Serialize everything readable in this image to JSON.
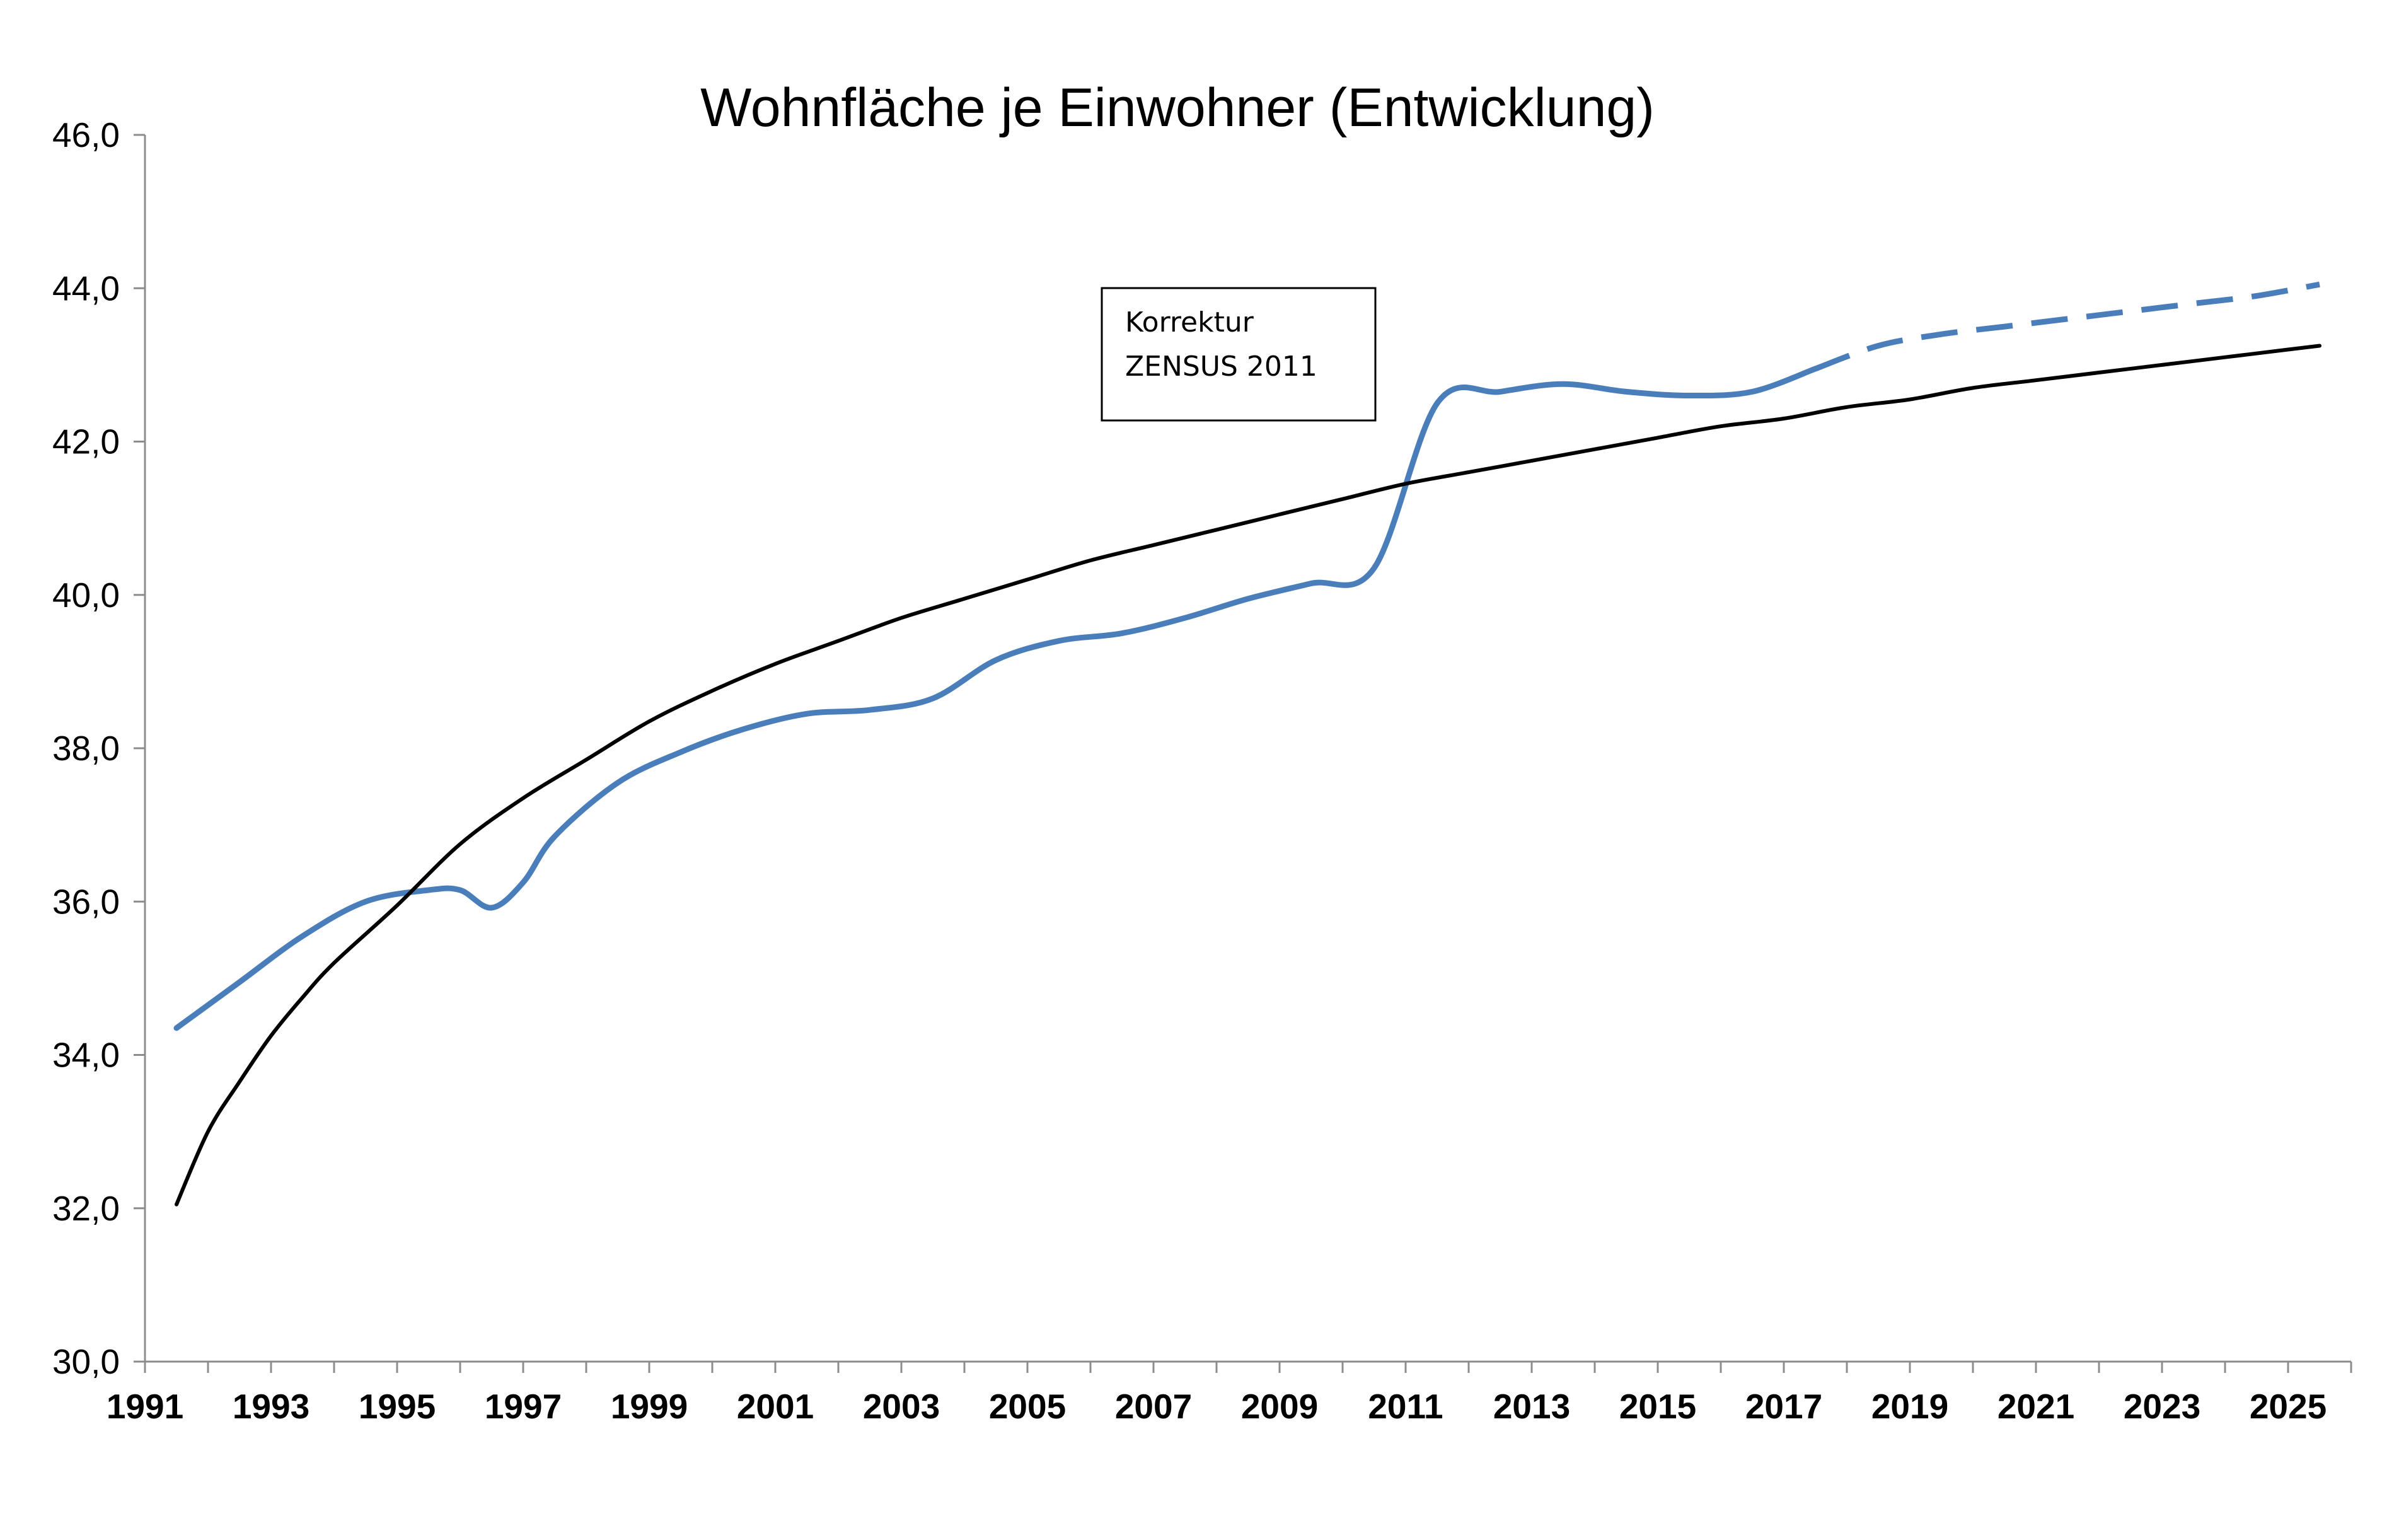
{
  "chart_data": {
    "type": "line",
    "title": "Wohnfläche je Einwohner (Entwicklung)",
    "xlabel": "",
    "ylabel": "",
    "xlim": [
      1991,
      2026
    ],
    "ylim": [
      30,
      46
    ],
    "ytick_labels": [
      "30,0",
      "32,0",
      "34,0",
      "36,0",
      "38,0",
      "40,0",
      "42,0",
      "44,0",
      "46,0"
    ],
    "ytick_values": [
      30,
      32,
      34,
      36,
      38,
      40,
      42,
      44,
      46
    ],
    "xtick_labels": [
      "1991",
      "1993",
      "1995",
      "1997",
      "1999",
      "2001",
      "2003",
      "2005",
      "2007",
      "2009",
      "2011",
      "2013",
      "2015",
      "2017",
      "2019",
      "2021",
      "2023",
      "2025"
    ],
    "xtick_values": [
      1991,
      1993,
      1995,
      1997,
      1999,
      2001,
      2003,
      2005,
      2007,
      2009,
      2011,
      2013,
      2015,
      2017,
      2019,
      2021,
      2023,
      2025
    ],
    "grid": false,
    "legend": "none",
    "annotation": {
      "lines": [
        "Korrektur",
        "ZENSUS 2011"
      ]
    },
    "series": [
      {
        "style": "solid",
        "color": "#4a7ebb",
        "x": [
          1991.5,
          1992.5,
          1993.5,
          1994.5,
          1995.5,
          1996,
          1996.5,
          1997,
          1997.5,
          1998.5,
          1999.5,
          2000.5,
          2001.5,
          2002.5,
          2003.5,
          2004.5,
          2005.5,
          2006.5,
          2007.5,
          2008.5,
          2009.5,
          2010.5,
          2011.5,
          2012.5,
          2013.5,
          2014.5,
          2015.5,
          2016.5,
          2017.5
        ],
        "y": [
          34.35,
          34.95,
          35.55,
          36.0,
          36.15,
          36.15,
          35.92,
          36.25,
          36.85,
          37.55,
          37.95,
          38.25,
          38.45,
          38.5,
          38.65,
          39.15,
          39.4,
          39.5,
          39.7,
          39.95,
          40.15,
          40.35,
          42.5,
          42.65,
          42.75,
          42.65,
          42.6,
          42.65,
          42.95
        ]
      },
      {
        "style": "dashed",
        "color": "#4a7ebb",
        "x": [
          2017.5,
          2018.5,
          2019.5,
          2020.5,
          2021.5,
          2022.5,
          2023.5,
          2024.5,
          2025.5
        ],
        "y": [
          42.95,
          43.25,
          43.4,
          43.5,
          43.6,
          43.7,
          43.8,
          43.9,
          44.05
        ]
      },
      {
        "style": "solid",
        "color": "#000000",
        "x": [
          1991.5,
          1992,
          1992.5,
          1993,
          1993.5,
          1994,
          1995,
          1996,
          1997,
          1998,
          1999,
          2000,
          2001,
          2002,
          2003,
          2004,
          2005,
          2006,
          2007,
          2008,
          2009,
          2010,
          2011,
          2012,
          2013,
          2014,
          2015,
          2016,
          2017,
          2018,
          2019,
          2020,
          2021,
          2022,
          2023,
          2024,
          2025,
          2025.5
        ],
        "y": [
          32.05,
          33.0,
          33.65,
          34.25,
          34.75,
          35.2,
          35.95,
          36.75,
          37.35,
          37.85,
          38.35,
          38.75,
          39.1,
          39.4,
          39.7,
          39.95,
          40.2,
          40.45,
          40.65,
          40.85,
          41.05,
          41.25,
          41.45,
          41.6,
          41.75,
          41.9,
          42.05,
          42.2,
          42.3,
          42.45,
          42.55,
          42.7,
          42.8,
          42.9,
          43.0,
          43.1,
          43.2,
          43.25
        ]
      }
    ]
  }
}
